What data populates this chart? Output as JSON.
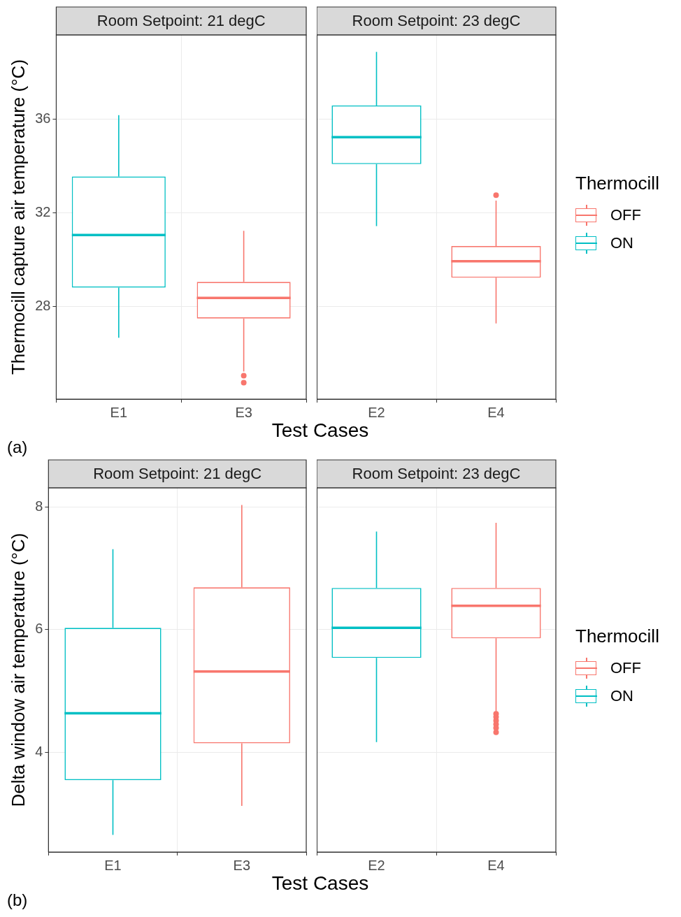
{
  "chart_data": [
    {
      "type": "box",
      "title": "Room Setpoint: 21 degC",
      "xlabel": "Test Cases",
      "ylabel": "Thermocill capture air temperature (°C)",
      "annotations": [
        "(a)"
      ],
      "categories": [
        "E1",
        "E3"
      ],
      "ylim": [
        24.06,
        39.6
      ],
      "yticks": [
        28,
        32,
        36
      ],
      "grid": true,
      "series": [
        {
          "color": "#f8766d",
          "boxes": [
            null,
            {
              "low": 25.24,
              "q1": 27.5,
              "median": 28.38,
              "q3": 29.06,
              "high": 31.24,
              "outliers": [
                25.06,
                24.76
              ]
            }
          ]
        },
        {
          "color": "#00bfc4",
          "boxes": [
            {
              "low": 26.68,
              "q1": 28.82,
              "median": 31.06,
              "q3": 33.56,
              "high": 36.18
            },
            null
          ]
        }
      ]
    },
    {
      "type": "box",
      "title": "Room Setpoint: 23 degC",
      "legend_title": "Thermocill",
      "categories": [
        "E2",
        "E4"
      ],
      "ylim": [
        24.06,
        39.6
      ],
      "yticks": [
        28,
        32,
        36
      ],
      "tick_labels": "x",
      "grid": true,
      "legend": "right",
      "series": [
        {
          "name": "OFF",
          "color": "#f8766d",
          "boxes": [
            null,
            {
              "low": 27.29,
              "q1": 29.24,
              "median": 29.94,
              "q3": 30.59,
              "high": 32.53,
              "outliers": [
                32.76
              ]
            }
          ]
        },
        {
          "name": "ON",
          "color": "#00bfc4",
          "boxes": [
            {
              "low": 31.44,
              "q1": 34.09,
              "median": 35.24,
              "q3": 36.59,
              "high": 38.88
            },
            null
          ]
        }
      ]
    },
    {
      "type": "box",
      "title": "Room Setpoint: 21 degC",
      "xlabel": "Test Cases",
      "ylabel": "Delta window air temperature (°C)",
      "annotations": [
        "(b)"
      ],
      "categories": [
        "E1",
        "E3"
      ],
      "ylim": [
        2.38,
        8.31
      ],
      "yticks": [
        4,
        6,
        8
      ],
      "grid": true,
      "series": [
        {
          "color": "#f8766d",
          "boxes": [
            null,
            {
              "low": 3.13,
              "q1": 4.15,
              "median": 5.32,
              "q3": 6.69,
              "high": 8.03
            }
          ]
        },
        {
          "color": "#00bfc4",
          "boxes": [
            {
              "low": 2.66,
              "q1": 3.55,
              "median": 4.64,
              "q3": 6.03,
              "high": 7.31
            },
            null
          ]
        }
      ]
    },
    {
      "type": "box",
      "title": "Room Setpoint: 23 degC",
      "legend_title": "Thermocill",
      "categories": [
        "E2",
        "E4"
      ],
      "ylim": [
        2.38,
        8.31
      ],
      "yticks": [
        4,
        6,
        8
      ],
      "tick_labels": "x",
      "grid": true,
      "legend": "right",
      "series": [
        {
          "name": "OFF",
          "color": "#f8766d",
          "boxes": [
            null,
            {
              "low": 4.67,
              "q1": 5.86,
              "median": 6.39,
              "q3": 6.68,
              "high": 7.74,
              "outliers": [
                4.63,
                4.58,
                4.52,
                4.46,
                4.4,
                4.33
              ]
            }
          ]
        },
        {
          "name": "ON",
          "color": "#00bfc4",
          "boxes": [
            {
              "low": 4.17,
              "q1": 5.54,
              "median": 6.03,
              "q3": 6.68,
              "high": 7.6
            },
            null
          ]
        }
      ]
    }
  ]
}
